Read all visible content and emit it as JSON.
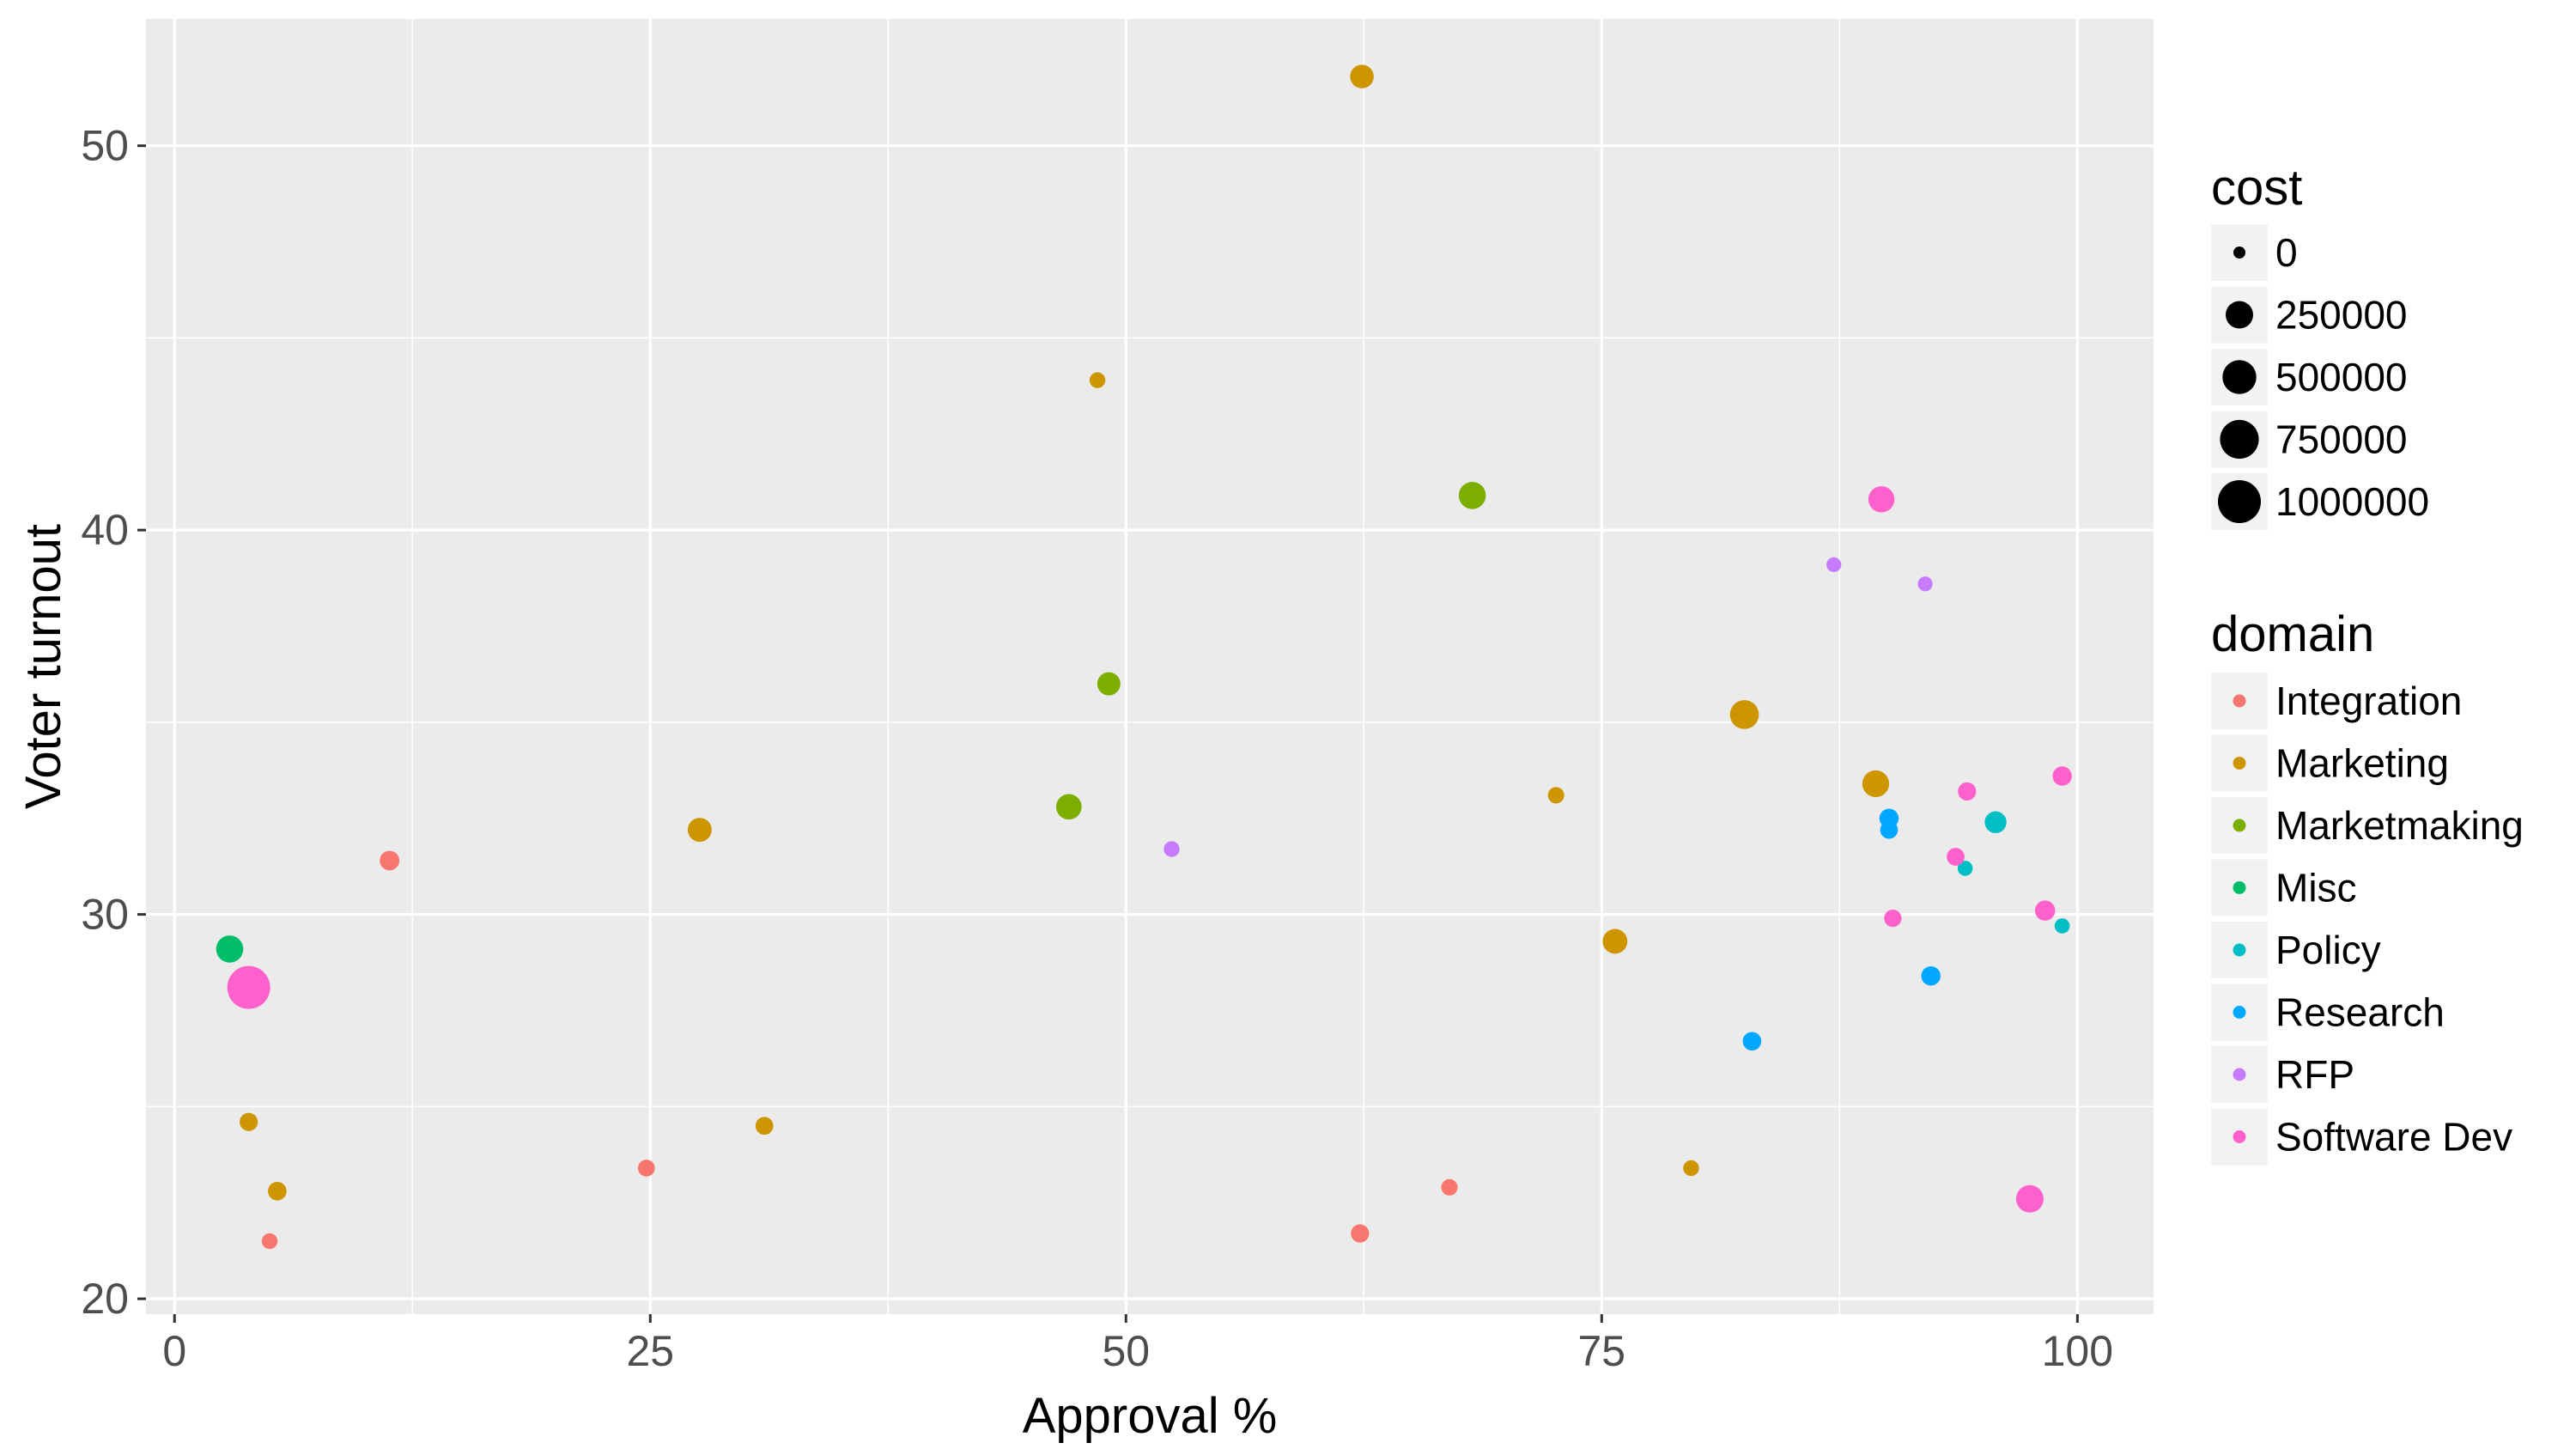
{
  "chart_data": {
    "type": "scatter",
    "xlabel": "Approval %",
    "ylabel": "Voter turnout",
    "xlim": [
      -1.5,
      104
    ],
    "ylim": [
      19.6,
      53.3
    ],
    "xticks": [
      0,
      25,
      50,
      75,
      100
    ],
    "yticks": [
      20,
      30,
      40,
      50
    ],
    "grid": true,
    "legend_placement": "right",
    "size_legend": {
      "title": "cost",
      "values": [
        0,
        250000,
        500000,
        750000,
        1000000
      ],
      "labels": [
        "0",
        "250000",
        "500000",
        "750000",
        "1000000"
      ]
    },
    "color_legend": {
      "title": "domain",
      "entries": [
        {
          "name": "Integration",
          "color": "#F8766D"
        },
        {
          "name": "Marketing",
          "color": "#CD9600"
        },
        {
          "name": "Marketmaking",
          "color": "#7CAE00"
        },
        {
          "name": "Misc",
          "color": "#00BE67"
        },
        {
          "name": "Policy",
          "color": "#00BFC4"
        },
        {
          "name": "Research",
          "color": "#00A9FF"
        },
        {
          "name": "RFP",
          "color": "#C77CFF"
        },
        {
          "name": "Software Dev",
          "color": "#FF61CC"
        }
      ]
    },
    "points": [
      {
        "x": 11.3,
        "y": 31.4,
        "cost": 60000,
        "domain": "Integration"
      },
      {
        "x": 24.8,
        "y": 23.4,
        "cost": 25000,
        "domain": "Integration"
      },
      {
        "x": 5.0,
        "y": 21.5,
        "cost": 15000,
        "domain": "Integration"
      },
      {
        "x": 62.3,
        "y": 21.7,
        "cost": 40000,
        "domain": "Integration"
      },
      {
        "x": 67.0,
        "y": 22.9,
        "cost": 20000,
        "domain": "Integration"
      },
      {
        "x": 62.4,
        "y": 51.8,
        "cost": 140000,
        "domain": "Marketing"
      },
      {
        "x": 48.5,
        "y": 43.9,
        "cost": 15000,
        "domain": "Marketing"
      },
      {
        "x": 27.6,
        "y": 32.2,
        "cost": 150000,
        "domain": "Marketing"
      },
      {
        "x": 72.6,
        "y": 33.1,
        "cost": 20000,
        "domain": "Marketing"
      },
      {
        "x": 82.5,
        "y": 35.2,
        "cost": 300000,
        "domain": "Marketing"
      },
      {
        "x": 89.4,
        "y": 33.4,
        "cost": 230000,
        "domain": "Marketing"
      },
      {
        "x": 75.7,
        "y": 29.3,
        "cost": 170000,
        "domain": "Marketing"
      },
      {
        "x": 3.9,
        "y": 24.6,
        "cost": 40000,
        "domain": "Marketing"
      },
      {
        "x": 5.4,
        "y": 22.8,
        "cost": 45000,
        "domain": "Marketing"
      },
      {
        "x": 31.0,
        "y": 24.5,
        "cost": 35000,
        "domain": "Marketing"
      },
      {
        "x": 79.7,
        "y": 23.4,
        "cost": 15000,
        "domain": "Marketing"
      },
      {
        "x": 68.2,
        "y": 40.9,
        "cost": 240000,
        "domain": "Marketmaking"
      },
      {
        "x": 49.1,
        "y": 36.0,
        "cost": 130000,
        "domain": "Marketmaking"
      },
      {
        "x": 47.0,
        "y": 32.8,
        "cost": 190000,
        "domain": "Marketmaking"
      },
      {
        "x": 2.9,
        "y": 29.1,
        "cost": 240000,
        "domain": "Misc"
      },
      {
        "x": 95.7,
        "y": 32.4,
        "cost": 100000,
        "domain": "Policy"
      },
      {
        "x": 94.1,
        "y": 31.2,
        "cost": 10000,
        "domain": "Policy"
      },
      {
        "x": 99.2,
        "y": 29.7,
        "cost": 10000,
        "domain": "Policy"
      },
      {
        "x": 90.1,
        "y": 32.5,
        "cost": 55000,
        "domain": "Research"
      },
      {
        "x": 90.1,
        "y": 32.2,
        "cost": 35000,
        "domain": "Research"
      },
      {
        "x": 92.3,
        "y": 28.4,
        "cost": 55000,
        "domain": "Research"
      },
      {
        "x": 82.9,
        "y": 26.7,
        "cost": 45000,
        "domain": "Research"
      },
      {
        "x": 87.2,
        "y": 39.1,
        "cost": 8000,
        "domain": "RFP"
      },
      {
        "x": 92.0,
        "y": 38.6,
        "cost": 8000,
        "domain": "RFP"
      },
      {
        "x": 52.4,
        "y": 31.7,
        "cost": 15000,
        "domain": "RFP"
      },
      {
        "x": 89.7,
        "y": 40.8,
        "cost": 210000,
        "domain": "Software Dev"
      },
      {
        "x": 94.2,
        "y": 33.2,
        "cost": 40000,
        "domain": "Software Dev"
      },
      {
        "x": 99.2,
        "y": 33.6,
        "cost": 55000,
        "domain": "Software Dev"
      },
      {
        "x": 93.6,
        "y": 31.5,
        "cost": 35000,
        "domain": "Software Dev"
      },
      {
        "x": 90.3,
        "y": 29.9,
        "cost": 30000,
        "domain": "Software Dev"
      },
      {
        "x": 98.3,
        "y": 30.1,
        "cost": 70000,
        "domain": "Software Dev"
      },
      {
        "x": 97.5,
        "y": 22.6,
        "cost": 250000,
        "domain": "Software Dev"
      },
      {
        "x": 3.9,
        "y": 28.1,
        "cost": 1000000,
        "domain": "Software Dev"
      }
    ]
  }
}
